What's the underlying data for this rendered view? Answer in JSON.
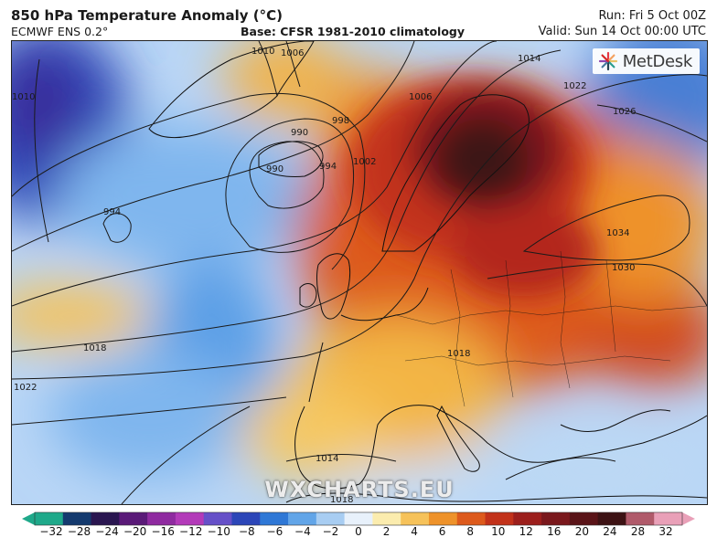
{
  "header": {
    "title": "850 hPa Temperature Anomaly (°C)",
    "model": "ECMWF ENS 0.2°",
    "base": "Base: CFSR 1981-2010 climatology",
    "run": "Run: Fri 5 Oct 00Z",
    "valid": "Valid: Sun 14 Oct 00:00 UTC"
  },
  "logo": {
    "text": "MetDesk",
    "icon": "metdesk-star-logo"
  },
  "watermark": "WXCHARTS.EU",
  "isobar_labels": [
    "1010",
    "1006",
    "1014",
    "1022",
    "1026",
    "990",
    "990",
    "994",
    "998",
    "1002",
    "1006",
    "1010",
    "994",
    "1034",
    "1030",
    "1018",
    "1022",
    "1018",
    "1014",
    "1018"
  ],
  "colorbar": {
    "ticks": [
      "−32",
      "−28",
      "−24",
      "−20",
      "−16",
      "−12",
      "−10",
      "−8",
      "−6",
      "−4",
      "−2",
      "0",
      "2",
      "4",
      "6",
      "8",
      "10",
      "12",
      "16",
      "20",
      "24",
      "28",
      "32"
    ],
    "colors": [
      "#1fa98a",
      "#143a6e",
      "#2a1650",
      "#5a1a78",
      "#8f2aa0",
      "#b33ab9",
      "#6650c8",
      "#2c46b8",
      "#2f78d6",
      "#62a5e8",
      "#a8cdf2",
      "#e8f1fb",
      "#fbecae",
      "#f6c25a",
      "#ee922a",
      "#dd5a1c",
      "#c2321a",
      "#9c1f1c",
      "#7a181c",
      "#5a1418",
      "#3d1214",
      "#b05a6a",
      "#e9a0b8"
    ]
  }
}
